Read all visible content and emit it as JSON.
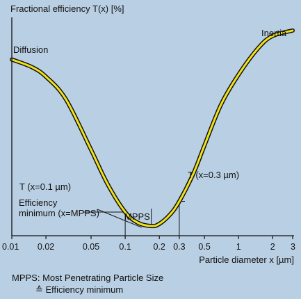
{
  "chart_data": {
    "type": "line",
    "ylabel": "Fractional efficiency T(x) [%]",
    "xlabel": "Particle diameter x [µm]",
    "x_scale": "log",
    "xlim": [
      0.01,
      3
    ],
    "x_ticks": [
      {
        "value": 0.01,
        "label": "0.01"
      },
      {
        "value": 0.02,
        "label": "0.02"
      },
      {
        "value": 0.05,
        "label": "0.05"
      },
      {
        "value": 0.1,
        "label": "0.1"
      },
      {
        "value": 0.2,
        "label": "0.2"
      },
      {
        "value": 0.3,
        "label": "0.3"
      },
      {
        "value": 0.5,
        "label": "0.5"
      },
      {
        "value": 1,
        "label": "1"
      },
      {
        "value": 2,
        "label": "2"
      },
      {
        "value": 3,
        "label": "3"
      }
    ],
    "ylim": [
      0,
      100
    ],
    "y_ticks_shown": false,
    "series": [
      {
        "color": "#f1e21a",
        "outline": "#111111",
        "points": [
          [
            0.01,
            82
          ],
          [
            0.015,
            78.5
          ],
          [
            0.02,
            74
          ],
          [
            0.03,
            63.5
          ],
          [
            0.05,
            40
          ],
          [
            0.07,
            24
          ],
          [
            0.1,
            11
          ],
          [
            0.13,
            6
          ],
          [
            0.17,
            4.5
          ],
          [
            0.2,
            5.5
          ],
          [
            0.25,
            10
          ],
          [
            0.3,
            16
          ],
          [
            0.4,
            29
          ],
          [
            0.5,
            42
          ],
          [
            0.7,
            61
          ],
          [
            1,
            75
          ],
          [
            1.5,
            87.5
          ],
          [
            2,
            93
          ],
          [
            3,
            95.5
          ]
        ]
      }
    ],
    "region_labels": {
      "left": "Diffusion",
      "right": "Inertia"
    },
    "annotations": {
      "t01": "T (x=0.1 µm)",
      "t03": "T (x=0.3 µm)",
      "eff_line1": "Efficiency",
      "eff_line2": "minimum (x=MPPS)",
      "mpps": "MPPS"
    },
    "annotation_x": {
      "t01": 0.1,
      "t03": 0.3,
      "mpps": 0.17
    },
    "grid": false
  },
  "footnote": {
    "line1": "MPPS: Most Penetrating Particle Size",
    "line2": "≙ Efficiency minimum"
  }
}
